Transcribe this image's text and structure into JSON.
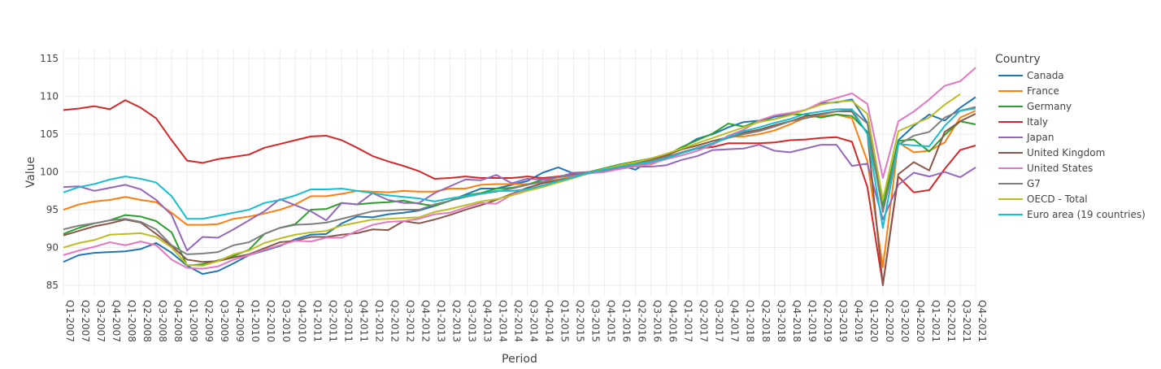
{
  "chart_data": {
    "type": "line",
    "title": "",
    "xlabel": "Period",
    "ylabel": "Value",
    "ylim": [
      83.5,
      116.3
    ],
    "yticks": [
      85,
      90,
      95,
      100,
      105,
      110,
      115
    ],
    "grid": true,
    "legend_title": "Country",
    "legend_position": "right",
    "x": [
      "Q1-2007",
      "Q2-2007",
      "Q3-2007",
      "Q4-2007",
      "Q1-2008",
      "Q2-2008",
      "Q3-2008",
      "Q4-2008",
      "Q1-2009",
      "Q2-2009",
      "Q3-2009",
      "Q4-2009",
      "Q1-2010",
      "Q2-2010",
      "Q3-2010",
      "Q4-2010",
      "Q1-2011",
      "Q2-2011",
      "Q3-2011",
      "Q4-2011",
      "Q1-2012",
      "Q2-2012",
      "Q3-2012",
      "Q4-2012",
      "Q1-2013",
      "Q2-2013",
      "Q3-2013",
      "Q4-2013",
      "Q1-2014",
      "Q2-2014",
      "Q3-2014",
      "Q4-2014",
      "Q1-2015",
      "Q2-2015",
      "Q3-2015",
      "Q4-2015",
      "Q1-2016",
      "Q2-2016",
      "Q3-2016",
      "Q4-2016",
      "Q1-2017",
      "Q2-2017",
      "Q3-2017",
      "Q4-2017",
      "Q1-2018",
      "Q2-2018",
      "Q3-2018",
      "Q4-2018",
      "Q1-2019",
      "Q2-2019",
      "Q3-2019",
      "Q4-2019",
      "Q1-2020",
      "Q2-2020",
      "Q3-2020",
      "Q4-2020",
      "Q1-2021",
      "Q2-2021",
      "Q3-2021",
      "Q4-2021"
    ],
    "series": [
      {
        "name": "Canada",
        "color": "#1f77b4",
        "values": [
          88.1,
          89.0,
          89.3,
          89.4,
          89.5,
          89.8,
          90.6,
          89.3,
          87.6,
          86.5,
          86.9,
          87.9,
          89.0,
          89.6,
          90.2,
          91.1,
          91.7,
          91.8,
          93.2,
          94.1,
          94.0,
          94.4,
          94.6,
          94.9,
          95.5,
          96.2,
          97.0,
          97.8,
          97.8,
          98.3,
          98.8,
          99.9,
          100.6,
          99.8,
          100.0,
          100.0,
          100.9,
          100.3,
          101.6,
          102.1,
          103.2,
          104.4,
          105.0,
          105.9,
          106.6,
          106.8,
          107.3,
          107.7,
          108.2,
          109.1,
          109.2,
          109.6,
          106.5,
          95.3,
          104.2,
          106.1,
          107.6,
          106.8,
          108.5,
          109.9
        ]
      },
      {
        "name": "France",
        "color": "#ff7f0e",
        "values": [
          95.0,
          95.7,
          96.1,
          96.3,
          96.7,
          96.3,
          96.0,
          94.6,
          93.0,
          93.0,
          93.1,
          93.8,
          94.1,
          94.5,
          95.0,
          95.7,
          96.8,
          96.8,
          97.1,
          97.5,
          97.4,
          97.3,
          97.5,
          97.4,
          97.4,
          97.8,
          97.8,
          98.3,
          98.4,
          98.4,
          98.4,
          98.6,
          99.0,
          99.4,
          100.0,
          100.3,
          100.8,
          100.8,
          101.0,
          101.8,
          102.5,
          103.1,
          103.7,
          104.7,
          104.7,
          105.0,
          105.5,
          106.3,
          107.2,
          107.4,
          107.6,
          107.1,
          101.4,
          87.4,
          103.9,
          102.6,
          102.8,
          103.9,
          107.2,
          108.1
        ]
      },
      {
        "name": "Germany",
        "color": "#2ca02c",
        "values": [
          91.8,
          92.6,
          93.2,
          93.6,
          94.3,
          94.1,
          93.5,
          92.0,
          87.6,
          87.8,
          88.3,
          88.9,
          89.7,
          91.8,
          92.6,
          93.1,
          95.0,
          95.1,
          95.9,
          95.7,
          95.9,
          96.0,
          96.2,
          95.8,
          95.5,
          96.2,
          96.9,
          97.2,
          97.8,
          97.9,
          98.3,
          99.0,
          99.3,
          99.6,
          100.0,
          100.5,
          101.0,
          101.4,
          101.8,
          102.2,
          103.3,
          104.2,
          105.1,
          106.4,
          106.0,
          106.8,
          107.0,
          107.6,
          107.6,
          107.2,
          107.6,
          107.4,
          105.3,
          95.5,
          104.1,
          104.3,
          102.7,
          104.9,
          106.7,
          106.3
        ]
      },
      {
        "name": "Italy",
        "color": "#d62728",
        "values": [
          108.2,
          108.4,
          108.7,
          108.3,
          109.5,
          108.5,
          107.1,
          104.2,
          101.5,
          101.2,
          101.7,
          102.0,
          102.3,
          103.2,
          103.7,
          104.2,
          104.7,
          104.8,
          104.2,
          103.2,
          102.1,
          101.4,
          100.8,
          100.1,
          99.1,
          99.2,
          99.4,
          99.2,
          99.2,
          99.2,
          99.4,
          99.2,
          99.4,
          99.7,
          100.0,
          100.2,
          100.8,
          101.0,
          101.3,
          101.8,
          102.6,
          103.1,
          103.3,
          103.8,
          103.8,
          103.8,
          103.9,
          104.2,
          104.3,
          104.5,
          104.6,
          104.0,
          98.0,
          85.1,
          99.4,
          97.3,
          97.6,
          100.4,
          102.9,
          103.5
        ]
      },
      {
        "name": "Japan",
        "color": "#9467bd",
        "values": [
          98.0,
          98.1,
          97.5,
          97.9,
          98.3,
          97.7,
          96.3,
          94.3,
          89.6,
          91.4,
          91.3,
          92.4,
          93.6,
          94.8,
          96.4,
          95.6,
          94.8,
          93.6,
          95.9,
          95.7,
          97.2,
          96.3,
          95.9,
          95.9,
          97.2,
          98.1,
          99.0,
          98.9,
          99.6,
          98.5,
          99.1,
          99.0,
          99.3,
          99.9,
          100.0,
          100.0,
          100.6,
          100.7,
          100.7,
          100.9,
          101.6,
          102.1,
          102.9,
          103.0,
          103.1,
          103.6,
          102.8,
          102.6,
          103.1,
          103.6,
          103.6,
          100.8,
          101.1,
          93.7,
          98.3,
          99.9,
          99.4,
          100.0,
          99.3,
          100.6
        ]
      },
      {
        "name": "United Kingdom",
        "color": "#8c564b",
        "values": [
          91.6,
          92.2,
          92.8,
          93.2,
          93.7,
          93.3,
          91.8,
          90.2,
          88.4,
          88.1,
          88.2,
          88.7,
          89.1,
          89.9,
          90.7,
          90.9,
          91.4,
          91.4,
          91.7,
          91.9,
          92.4,
          92.3,
          93.5,
          93.2,
          93.7,
          94.3,
          95.0,
          95.6,
          96.3,
          97.1,
          97.9,
          98.5,
          98.9,
          99.3,
          99.8,
          100.3,
          100.9,
          101.3,
          101.6,
          102.2,
          103.0,
          103.5,
          104.1,
          104.6,
          105.2,
          105.6,
          106.2,
          106.7,
          107.4,
          107.7,
          108.0,
          108.0,
          105.1,
          85.0,
          99.7,
          101.3,
          100.2,
          105.3,
          106.7,
          107.7
        ]
      },
      {
        "name": "United States",
        "color": "#e377c2",
        "values": [
          89.0,
          89.6,
          90.1,
          90.7,
          90.3,
          90.8,
          90.3,
          88.4,
          87.3,
          87.2,
          87.5,
          88.4,
          89.0,
          89.7,
          90.3,
          90.9,
          90.8,
          91.3,
          91.3,
          92.2,
          93.0,
          93.4,
          93.5,
          93.8,
          94.4,
          94.6,
          95.3,
          95.9,
          95.8,
          97.0,
          97.7,
          98.2,
          98.7,
          99.4,
          99.8,
          100.0,
          100.4,
          100.7,
          101.1,
          101.7,
          102.2,
          102.8,
          103.6,
          104.8,
          105.6,
          106.8,
          107.5,
          107.8,
          108.2,
          109.2,
          109.8,
          110.4,
          109.0,
          99.2,
          106.7,
          108.0,
          109.6,
          111.4,
          112.0,
          113.8
        ]
      },
      {
        "name": "G7",
        "color": "#7f7f7f",
        "values": [
          92.4,
          92.9,
          93.2,
          93.6,
          93.8,
          93.4,
          92.4,
          90.3,
          89.1,
          89.2,
          89.4,
          90.3,
          90.7,
          91.8,
          92.6,
          93.0,
          93.1,
          93.3,
          93.8,
          94.3,
          94.8,
          94.9,
          95.0,
          95.0,
          95.7,
          96.2,
          96.7,
          97.1,
          97.4,
          97.8,
          98.3,
          98.7,
          99.3,
          99.6,
          100.0,
          100.2,
          100.7,
          101.1,
          101.5,
          102.0,
          102.6,
          103.2,
          103.8,
          104.5,
          105.0,
          105.4,
          106.0,
          106.7,
          107.1,
          107.6,
          108.0,
          108.2,
          106.4,
          94.7,
          103.6,
          104.8,
          105.3,
          107.2,
          108.1,
          108.6
        ]
      },
      {
        "name": "OECD - Total",
        "color": "#bcbd22",
        "values": [
          90.0,
          90.6,
          91.0,
          91.7,
          91.8,
          91.9,
          91.4,
          90.0,
          87.7,
          87.6,
          88.2,
          89.1,
          89.6,
          90.6,
          91.2,
          91.7,
          92.0,
          92.2,
          92.9,
          93.3,
          93.7,
          93.8,
          93.9,
          94.0,
          94.7,
          95.1,
          95.6,
          96.1,
          96.4,
          96.9,
          97.5,
          98.0,
          98.6,
          99.2,
          99.9,
          100.4,
          100.9,
          101.3,
          101.8,
          102.4,
          103.1,
          103.8,
          104.5,
          105.2,
          105.9,
          106.6,
          107.0,
          107.5,
          108.2,
          108.9,
          109.3,
          109.4,
          107.7,
          96.3,
          105.4,
          106.3,
          107.2,
          108.9,
          110.3,
          null
        ]
      },
      {
        "name": "Euro area (19 countries)",
        "color": "#17becf",
        "values": [
          97.3,
          98.0,
          98.4,
          99.0,
          99.4,
          99.1,
          98.6,
          96.8,
          93.8,
          93.8,
          94.2,
          94.6,
          95.0,
          95.9,
          96.3,
          96.9,
          97.7,
          97.7,
          97.8,
          97.5,
          97.2,
          96.9,
          96.7,
          96.5,
          96.1,
          96.5,
          96.8,
          97.1,
          97.5,
          97.5,
          97.7,
          98.2,
          98.8,
          99.3,
          99.9,
          100.3,
          100.7,
          101.0,
          101.3,
          101.8,
          102.5,
          103.1,
          103.8,
          104.6,
          105.4,
          105.9,
          106.5,
          107.0,
          107.7,
          108.0,
          108.3,
          108.3,
          105.0,
          92.6,
          103.7,
          103.5,
          103.4,
          106.1,
          108.1,
          108.4
        ]
      }
    ]
  }
}
